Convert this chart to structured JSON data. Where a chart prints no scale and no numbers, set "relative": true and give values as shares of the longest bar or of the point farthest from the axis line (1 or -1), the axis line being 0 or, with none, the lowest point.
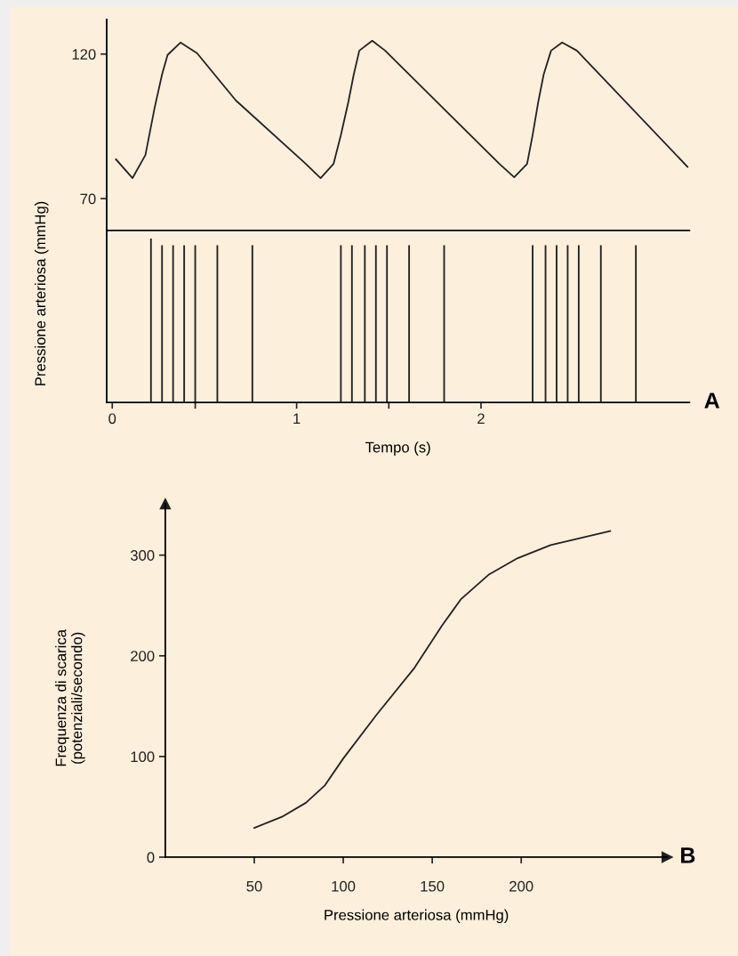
{
  "chart_data": [
    {
      "type": "line",
      "ylabel": "Pressione arteriosa (mmHg)",
      "tick_labels": "y",
      "xlim": [
        -0.03,
        3.13
      ],
      "ylim": [
        59,
        132
      ],
      "yticks": [
        70,
        120
      ],
      "color": "#222222",
      "x": [
        0.02,
        0.11,
        0.18,
        0.23,
        0.27,
        0.3,
        0.37,
        0.46,
        0.67,
        1.05,
        1.13,
        1.2,
        1.24,
        1.28,
        1.31,
        1.34,
        1.41,
        1.48,
        2.1,
        2.18,
        2.25,
        2.28,
        2.31,
        2.34,
        2.38,
        2.44,
        2.52,
        3.12
      ],
      "values": [
        83.6,
        77.1,
        85.1,
        101.5,
        112.9,
        119.7,
        124,
        120.3,
        104,
        82,
        77.1,
        82,
        92,
        103.3,
        113,
        121.2,
        124.6,
        121.2,
        82,
        77.4,
        82,
        92,
        103.3,
        113,
        121.2,
        124,
        121.2,
        81
      ]
    },
    {
      "type": "bar",
      "relative": true,
      "xlabel": "Tempo (s)",
      "xlim": [
        -0.03,
        3.13
      ],
      "xticks": [
        0,
        {
          "value": 0.45,
          "label": null
        },
        1,
        {
          "value": 1.5,
          "label": null
        },
        2
      ],
      "color": "#222222",
      "annotations": [
        "A"
      ],
      "x": [
        0.21,
        0.27,
        0.33,
        0.39,
        0.45,
        0.57,
        0.76,
        1.24,
        1.3,
        1.37,
        1.43,
        1.49,
        1.61,
        1.8,
        2.28,
        2.35,
        2.41,
        2.47,
        2.53,
        2.65,
        2.84
      ],
      "values": [
        1,
        0.96,
        0.96,
        0.96,
        0.96,
        0.96,
        0.96,
        0.96,
        0.96,
        0.96,
        0.96,
        0.96,
        0.96,
        0.96,
        0.96,
        0.96,
        0.96,
        0.96,
        0.96,
        0.96,
        0.96
      ]
    },
    {
      "type": "line",
      "xlabel": "Pressione arteriosa (mmHg)",
      "ylabel": "Frequenza di scarica\n(potenziali/secondo)",
      "xlim": [
        0,
        282
      ],
      "ylim": [
        0,
        351
      ],
      "xticks": [
        50,
        100,
        150,
        200
      ],
      "yticks": [
        0,
        100,
        200,
        300
      ],
      "color": "#222222",
      "annotations": [
        "B"
      ],
      "x": [
        50,
        65.5,
        79,
        89.5,
        100,
        118.5,
        140,
        155.5,
        166,
        182,
        198,
        216.5,
        250
      ],
      "values": [
        29,
        40,
        54,
        71,
        98,
        141,
        188,
        230,
        256,
        281,
        297,
        310,
        324
      ]
    }
  ]
}
